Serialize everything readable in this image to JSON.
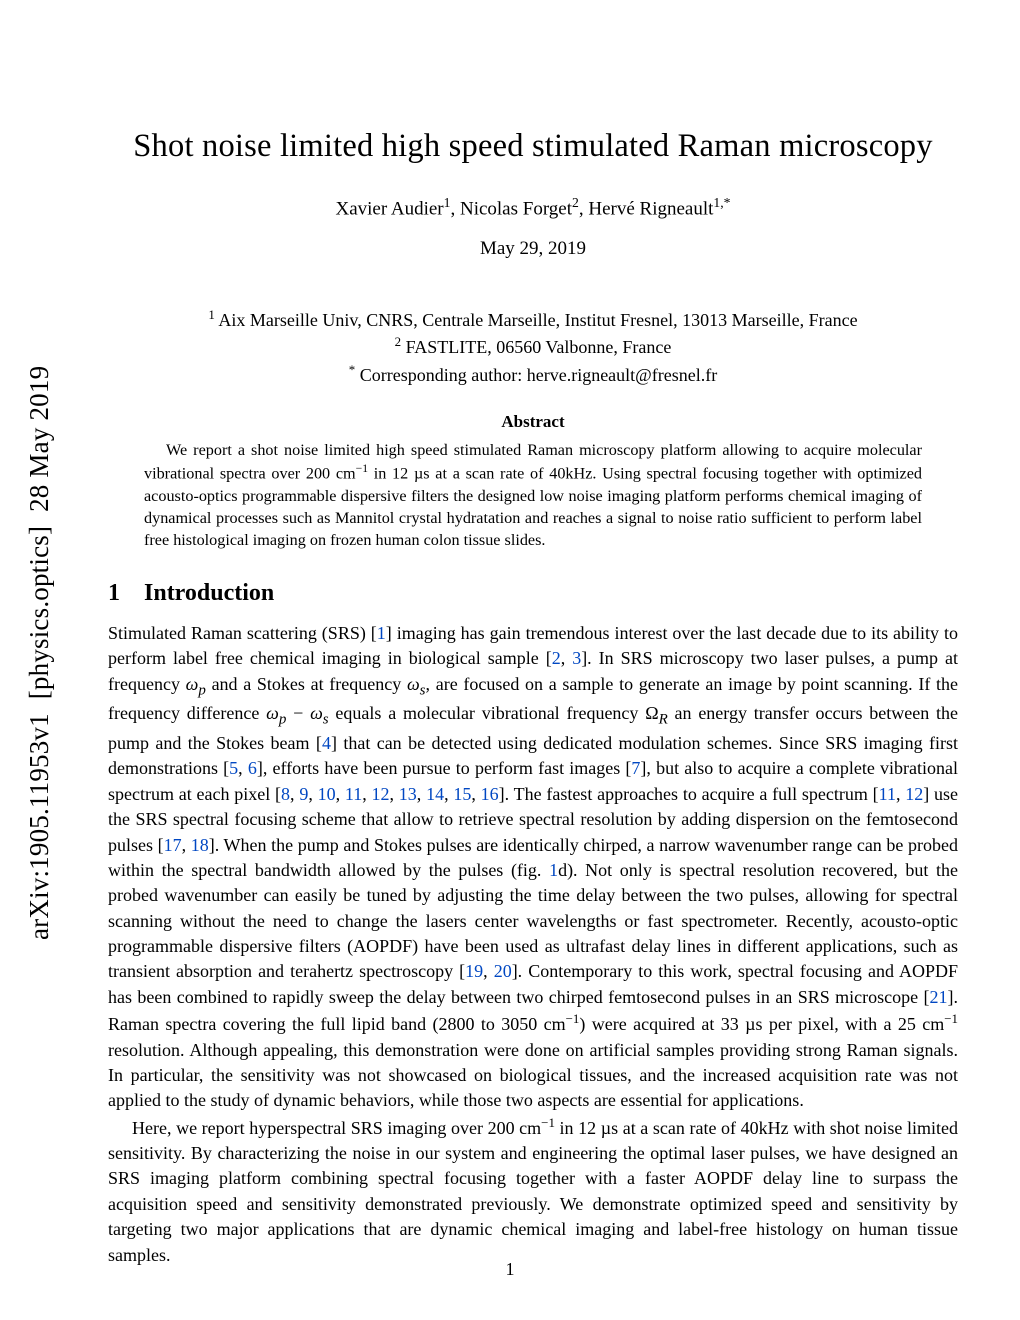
{
  "arxiv": {
    "id": "arXiv:1905.11953v1",
    "category": "[physics.optics]",
    "date": "28 May 2019"
  },
  "title": "Shot noise limited high speed stimulated Raman microscopy",
  "authors_html": "Xavier Audier<sup class=\"aff\">1</sup>, Nicolas Forget<sup class=\"aff\">2</sup>, Hervé Rigneault<sup class=\"aff\">1,*</sup>",
  "date": "May 29, 2019",
  "affiliations": [
    "<sup class=\"aff\">1</sup> Aix Marseille Univ, CNRS, Centrale Marseille, Institut Fresnel, 13013 Marseille, France",
    "<sup class=\"aff\">2</sup> FASTLITE, 06560 Valbonne, France",
    "<sup class=\"aff\">*</sup> Corresponding author: herve.rigneault@fresnel.fr"
  ],
  "abstract_heading": "Abstract",
  "abstract_body": "We report a shot noise limited high speed stimulated Raman microscopy platform allowing to acquire molecular vibrational spectra over 200 cm<sup class=\"sup-minus\">−1</sup> in 12 µs at a scan rate of 40kHz. Using spectral focusing together with optimized acousto-optics programmable dispersive filters the designed low noise imaging platform performs chemical imaging of dynamical processes such as Mannitol crystal hydratation and reaches a signal to noise ratio sufficient to perform label free histological imaging on frozen human colon tissue slides.",
  "section": {
    "number": "1",
    "title": "Introduction"
  },
  "body_p1": "Stimulated Raman scattering (SRS) [<span class=\"cite\">1</span>] imaging has gain tremendous interest over the last decade due to its ability to perform label free chemical imaging in biological sample [<span class=\"cite\">2</span>, <span class=\"cite\">3</span>]. In SRS microscopy two laser pulses, a pump at frequency <i>ω<sub>p</sub></i> and a Stokes at frequency <i>ω<sub>s</sub></i>, are focused on a sample to generate an image by point scanning. If the frequency difference <i>ω<sub>p</sub></i> − <i>ω<sub>s</sub></i> equals a molecular vibrational frequency Ω<sub><i>R</i></sub> an energy transfer occurs between the pump and the Stokes beam [<span class=\"cite\">4</span>] that can be detected using dedicated modulation schemes. Since SRS imaging first demonstrations [<span class=\"cite\">5</span>, <span class=\"cite\">6</span>], efforts have been pursue to perform fast images [<span class=\"cite\">7</span>], but also to acquire a complete vibrational spectrum at each pixel [<span class=\"cite\">8</span>, <span class=\"cite\">9</span>, <span class=\"cite\">10</span>, <span class=\"cite\">11</span>, <span class=\"cite\">12</span>, <span class=\"cite\">13</span>, <span class=\"cite\">14</span>, <span class=\"cite\">15</span>, <span class=\"cite\">16</span>]. The fastest approaches to acquire a full spectrum [<span class=\"cite\">11</span>, <span class=\"cite\">12</span>] use the SRS spectral focusing scheme that allow to retrieve spectral resolution by adding dispersion on the femtosecond pulses [<span class=\"cite\">17</span>, <span class=\"cite\">18</span>]. When the pump and Stokes pulses are identically chirped, a narrow wavenumber range can be probed within the spectral bandwidth allowed by the pulses (fig. <span class=\"cite\">1</span>d). Not only is spectral resolution recovered, but the probed wavenumber can easily be tuned by adjusting the time delay between the two pulses, allowing for spectral scanning without the need to change the lasers center wavelengths or fast spectrometer. Recently, acousto-optic programmable dispersive filters (AOPDF) have been used as ultrafast delay lines in different applications, such as transient absorption and terahertz spectroscopy [<span class=\"cite\">19</span>, <span class=\"cite\">20</span>]. Contemporary to this work, spectral focusing and AOPDF has been combined to rapidly sweep the delay between two chirped femtosecond pulses in an SRS microscope [<span class=\"cite\">21</span>]. Raman spectra covering the full lipid band (2800 to 3050 cm<sup class=\"sup-minus\">−1</sup>) were acquired at 33 µs per pixel, with a 25 cm<sup class=\"sup-minus\">−1</sup> resolution. Although appealing, this demonstration were done on artificial samples providing strong Raman signals. In particular, the sensitivity was not showcased on biological tissues, and the increased acquisition rate was not applied to the study of dynamic behaviors, while those two aspects are essential for applications.",
  "body_p2": "Here, we report hyperspectral SRS imaging over 200 cm<sup class=\"sup-minus\">−1</sup> in 12 µs at a scan rate of 40kHz with shot noise limited sensitivity. By characterizing the noise in our system and engineering the optimal laser pulses, we have designed an SRS imaging platform combining spectral focusing together with a faster AOPDF delay line to surpass the acquisition speed and sensitivity demonstrated previously. We demonstrate optimized speed and sensitivity by targeting two major applications that are dynamic chemical imaging and label-free histology on human tissue samples.",
  "page_number": "1",
  "colors": {
    "citation_color": "#0047c2",
    "text_color": "#000000",
    "bg_color": "#ffffff"
  },
  "typography": {
    "title_fontsize": 32.5,
    "authors_fontsize": 19,
    "affil_fontsize": 18,
    "abstract_fontsize": 16.2,
    "body_fontsize": 18,
    "section_fontsize": 24,
    "arxiv_fontsize": 27
  }
}
